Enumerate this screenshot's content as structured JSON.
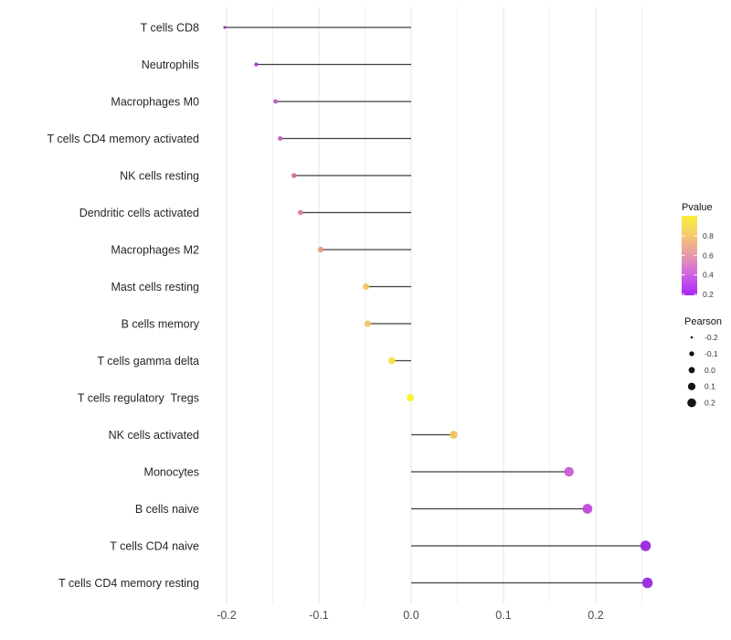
{
  "chart_data": {
    "type": "lollipop",
    "title": "",
    "xlabel": "",
    "ylabel": "",
    "baseline": 0.0,
    "xlim": [
      -0.225,
      0.278
    ],
    "x_tick_labels": [
      "-0.2",
      "-0.1",
      "0.0",
      "0.1",
      "0.2"
    ],
    "x_ticks_major": [
      -0.2,
      -0.1,
      0.0,
      0.1,
      0.2
    ],
    "x_ticks_minor": [
      -0.15,
      -0.05,
      0.05,
      0.15,
      0.25
    ],
    "grid": "vertical-only",
    "categories": [
      "T cells CD8",
      "Neutrophils",
      "Macrophages M0",
      "T cells CD4 memory activated",
      "NK cells resting",
      "Dendritic cells activated",
      "Macrophages M2",
      "Mast cells resting",
      "B cells memory",
      "T cells gamma delta",
      "T cells regulatory  Tregs",
      "NK cells activated",
      "Monocytes",
      "B cells naive",
      "T cells CD4 naive",
      "T cells CD4 memory resting"
    ],
    "points": [
      {
        "label": "T cells CD8",
        "pearson": -0.202,
        "color": "#9a30c6"
      },
      {
        "label": "Neutrophils",
        "pearson": -0.168,
        "color": "#aa3dcc"
      },
      {
        "label": "Macrophages M0",
        "pearson": -0.147,
        "color": "#c258c4"
      },
      {
        "label": "T cells CD4 memory activated",
        "pearson": -0.142,
        "color": "#c45cbe"
      },
      {
        "label": "NK cells resting",
        "pearson": -0.127,
        "color": "#cf6fa6"
      },
      {
        "label": "Dendritic cells activated",
        "pearson": -0.12,
        "color": "#dc8094"
      },
      {
        "label": "Macrophages M2",
        "pearson": -0.098,
        "color": "#e9967b"
      },
      {
        "label": "Mast cells resting",
        "pearson": -0.049,
        "color": "#f2c564"
      },
      {
        "label": "B cells memory",
        "pearson": -0.047,
        "color": "#f2c564"
      },
      {
        "label": "T cells gamma delta",
        "pearson": -0.021,
        "color": "#f7e33e"
      },
      {
        "label": "T cells regulatory  Tregs",
        "pearson": -0.001,
        "color": "#fbf32a"
      },
      {
        "label": "NK cells activated",
        "pearson": 0.046,
        "color": "#f2c35e"
      },
      {
        "label": "Monocytes",
        "pearson": 0.171,
        "color": "#c95fd2"
      },
      {
        "label": "B cells naive",
        "pearson": 0.191,
        "color": "#c04ad8"
      },
      {
        "label": "T cells CD4 naive",
        "pearson": 0.254,
        "color": "#9b27e0"
      },
      {
        "label": "T cells CD4 memory resting",
        "pearson": 0.256,
        "color": "#9b27e0"
      }
    ],
    "legend_pvalue": {
      "title": "Pvalue",
      "tick_labels": [
        "0.8",
        "0.6",
        "0.4",
        "0.2"
      ],
      "gradient_top_to_bottom": [
        "#f9ee39",
        "#f6d166",
        "#eda992",
        "#dd86c4",
        "#c457ea",
        "#a826f2"
      ]
    },
    "legend_pearson": {
      "title": "Pearson",
      "entries": [
        {
          "label": "-0.2",
          "r": 1.3
        },
        {
          "label": "-0.1",
          "r": 2.7
        },
        {
          "label": "0.0",
          "r": 3.4
        },
        {
          "label": "0.1",
          "r": 4.1
        },
        {
          "label": "0.2",
          "r": 4.8
        }
      ],
      "dot_color": "#141414"
    },
    "style_colors": {
      "stem": "#3f3f3f",
      "grid_major": "#e4e4e4",
      "grid_minor": "#f1f1f1",
      "axis_text": "#4d4d4d",
      "category_text": "#262626",
      "legend_title_text": "#111111",
      "legend_tick_text": "#333333",
      "background": "#ffffff"
    }
  }
}
